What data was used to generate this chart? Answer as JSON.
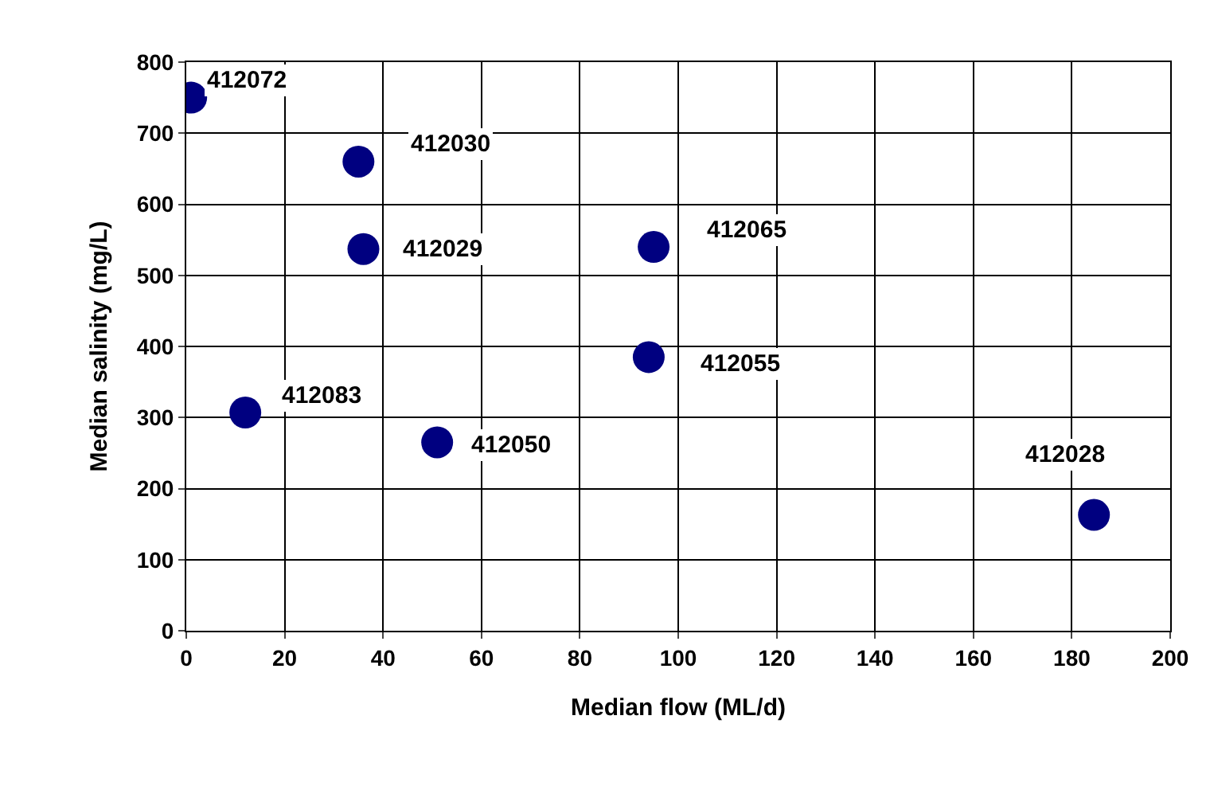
{
  "chart_data": {
    "type": "scatter",
    "xlabel": "Median flow (ML/d)",
    "ylabel": "Median salinity (mg/L)",
    "x": [
      1,
      35,
      36,
      95,
      94,
      12,
      51,
      184.5
    ],
    "series": [
      {
        "color": "#000080",
        "values": [
          750,
          660,
          537,
          540,
          385,
          307,
          265,
          163
        ]
      }
    ],
    "xlim": [
      0,
      200
    ],
    "xticks": [
      0,
      20,
      40,
      60,
      80,
      100,
      120,
      140,
      160,
      180,
      200
    ],
    "ylim": [
      0,
      800
    ],
    "yticks": [
      0,
      100,
      200,
      300,
      400,
      500,
      600,
      700,
      800
    ],
    "grid": true,
    "marker": "circle",
    "annotations": [
      {
        "text": "412072",
        "x": 1,
        "y": 750
      },
      {
        "text": "412030",
        "x": 35,
        "y": 660
      },
      {
        "text": "412029",
        "x": 36,
        "y": 537
      },
      {
        "text": "412065",
        "x": 95,
        "y": 540
      },
      {
        "text": "412055",
        "x": 94,
        "y": 385
      },
      {
        "text": "412083",
        "x": 12,
        "y": 307
      },
      {
        "text": "412050",
        "x": 51,
        "y": 265
      },
      {
        "text": "412028",
        "x": 184.5,
        "y": 163
      }
    ]
  }
}
